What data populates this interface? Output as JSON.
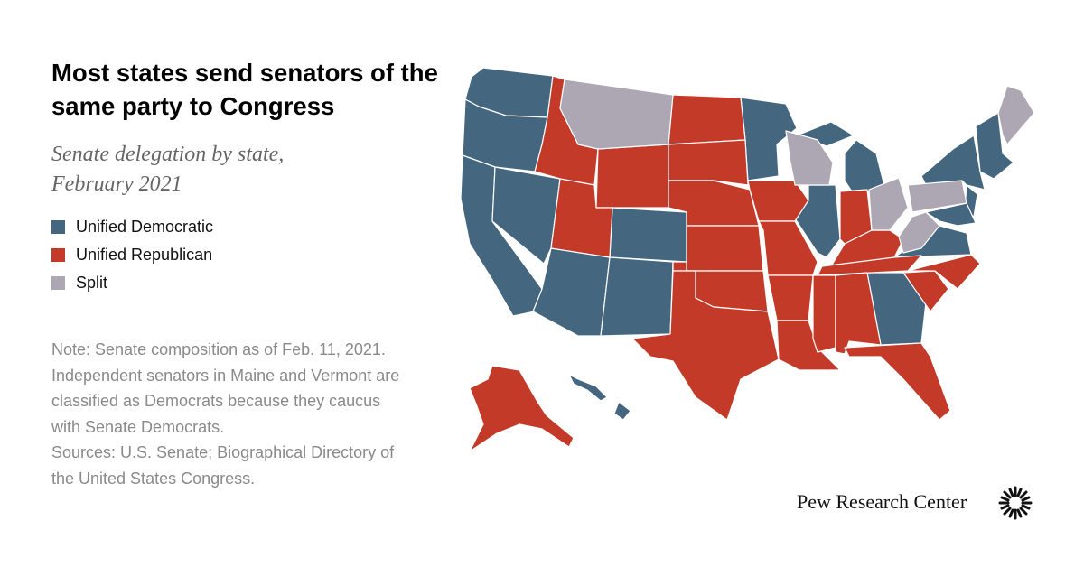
{
  "header": {
    "title": "Most states send senators of the same party to Congress",
    "subtitle": "Senate delegation by state, February 2021"
  },
  "legend": [
    {
      "label": "Unified Democratic",
      "color": "#44677f"
    },
    {
      "label": "Unified Republican",
      "color": "#c43a28"
    },
    {
      "label": "Split",
      "color": "#ada7b3"
    }
  ],
  "footer": {
    "note": "Note: Senate composition as of Feb. 11, 2021. Independent senators in Maine and Vermont are classified as Democrats because they caucus with Senate Democrats.",
    "sources": "Sources: U.S. Senate; Biographical Directory of the United States Congress.",
    "brand": "Pew Research Center"
  }
}
